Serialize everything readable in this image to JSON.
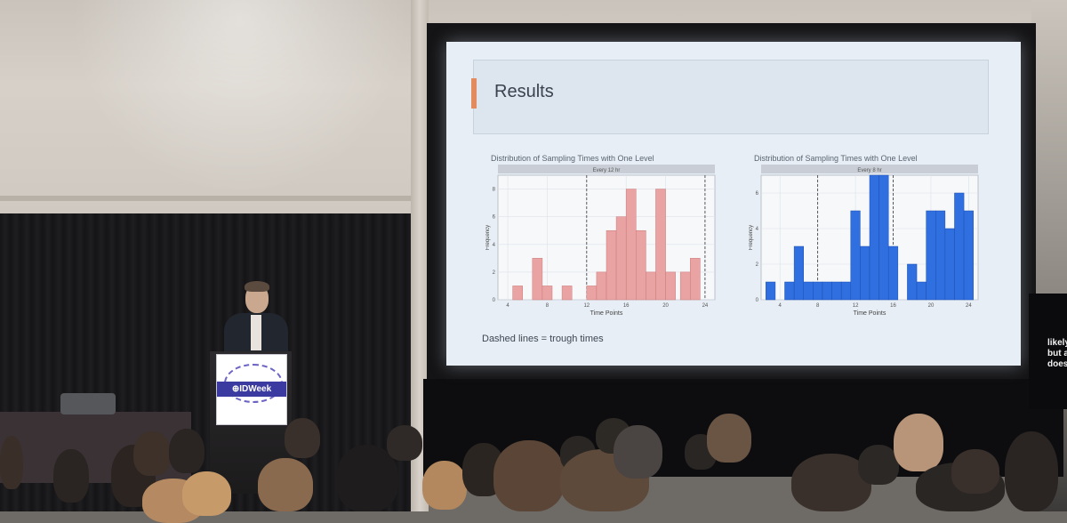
{
  "slide": {
    "title": "Results",
    "footnote": "Dashed lines = trough times"
  },
  "podium": {
    "logo_text": "⊕IDWeek"
  },
  "side_screen": {
    "text": "likely\nbut a\ndoes"
  },
  "charts": [
    {
      "id": "left",
      "title": "Distribution of Sampling Times with One Level",
      "facet_label": "Every 12 hr",
      "xlabel": "Time Points",
      "ylabel": "Frequency",
      "color": "#eaa3a3",
      "edge": "#c97a7a",
      "xlim": [
        3,
        25
      ],
      "ylim": [
        0,
        9
      ],
      "xticks": [
        4,
        8,
        12,
        16,
        20,
        24
      ],
      "yticks": [
        0,
        2,
        4,
        6,
        8
      ],
      "trough_lines": [
        12,
        24
      ],
      "bins": [
        {
          "x": 5,
          "v": 1
        },
        {
          "x": 6,
          "v": 0
        },
        {
          "x": 7,
          "v": 3
        },
        {
          "x": 8,
          "v": 1
        },
        {
          "x": 9,
          "v": 0
        },
        {
          "x": 10,
          "v": 1
        },
        {
          "x": 11,
          "v": 0
        },
        {
          "x": 12.5,
          "v": 1
        },
        {
          "x": 13.5,
          "v": 2
        },
        {
          "x": 14.5,
          "v": 5
        },
        {
          "x": 15.5,
          "v": 6
        },
        {
          "x": 16.5,
          "v": 8
        },
        {
          "x": 17.5,
          "v": 5
        },
        {
          "x": 18.5,
          "v": 2
        },
        {
          "x": 19.5,
          "v": 8
        },
        {
          "x": 20.5,
          "v": 2
        },
        {
          "x": 22,
          "v": 2
        },
        {
          "x": 23,
          "v": 3
        }
      ]
    },
    {
      "id": "right",
      "title": "Distribution of Sampling Times with One Level",
      "facet_label": "Every 8 hr",
      "xlabel": "Time Points",
      "ylabel": "Frequency",
      "color": "#2f6fe0",
      "edge": "#1d4fb0",
      "xlim": [
        2,
        25
      ],
      "ylim": [
        0,
        7
      ],
      "xticks": [
        4,
        8,
        12,
        16,
        20,
        24
      ],
      "yticks": [
        0,
        2,
        4,
        6
      ],
      "trough_lines": [
        8,
        16
      ],
      "bins": [
        {
          "x": 3,
          "v": 1
        },
        {
          "x": 4,
          "v": 0
        },
        {
          "x": 5,
          "v": 1
        },
        {
          "x": 6,
          "v": 3
        },
        {
          "x": 7,
          "v": 1
        },
        {
          "x": 8,
          "v": 1
        },
        {
          "x": 9,
          "v": 1
        },
        {
          "x": 10,
          "v": 1
        },
        {
          "x": 11,
          "v": 1
        },
        {
          "x": 12,
          "v": 5
        },
        {
          "x": 13,
          "v": 3
        },
        {
          "x": 14,
          "v": 7
        },
        {
          "x": 15,
          "v": 7
        },
        {
          "x": 16,
          "v": 3
        },
        {
          "x": 17,
          "v": 0
        },
        {
          "x": 18,
          "v": 2
        },
        {
          "x": 19,
          "v": 1
        },
        {
          "x": 20,
          "v": 5
        },
        {
          "x": 21,
          "v": 5
        },
        {
          "x": 22,
          "v": 4
        },
        {
          "x": 23,
          "v": 6
        },
        {
          "x": 24,
          "v": 5
        }
      ]
    }
  ],
  "colors": {
    "slide_bg": "#e7eef5",
    "accent": "#e38b5e"
  }
}
